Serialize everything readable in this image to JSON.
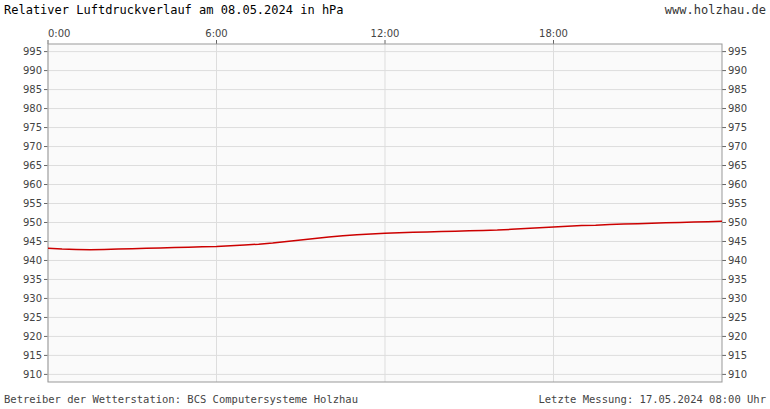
{
  "chart_data": {
    "type": "line",
    "title": "Relativer Luftdruckverlauf am 08.05.2024 in hPa",
    "annotations": [
      "www.holzhau.de",
      "Betreiber der Wetterstation: BCS Computersysteme Holzhau",
      "Letzte Messung: 17.05.2024 08:00 Uhr"
    ],
    "x": [
      0,
      6,
      12,
      18,
      24,
      30,
      36,
      42,
      48,
      54,
      60,
      66,
      72,
      78,
      84,
      90,
      96,
      102,
      108,
      114,
      120,
      126,
      132,
      138,
      144,
      150,
      156,
      162,
      168,
      174,
      180,
      186,
      192,
      198,
      204,
      210,
      216,
      222,
      228,
      234,
      240,
      246,
      252,
      258,
      264,
      270,
      276,
      282,
      288
    ],
    "values": [
      943.2,
      943.0,
      942.9,
      942.8,
      942.9,
      943.0,
      943.1,
      943.2,
      943.3,
      943.4,
      943.5,
      943.6,
      943.7,
      943.9,
      944.1,
      944.3,
      944.6,
      945.0,
      945.4,
      945.8,
      946.2,
      946.5,
      946.8,
      947.0,
      947.2,
      947.3,
      947.4,
      947.5,
      947.6,
      947.7,
      947.8,
      947.9,
      948.0,
      948.2,
      948.4,
      948.6,
      948.8,
      949.0,
      949.2,
      949.3,
      949.5,
      949.6,
      949.7,
      949.8,
      949.9,
      950.0,
      950.1,
      950.2,
      950.3
    ],
    "color": "#cc0000",
    "xlim": [
      0,
      288
    ],
    "xticks": [
      {
        "value": 0,
        "label": "0:00"
      },
      {
        "value": 72,
        "label": "6:00"
      },
      {
        "value": 144,
        "label": "12:00"
      },
      {
        "value": 216,
        "label": "18:00"
      }
    ],
    "ylim": [
      908,
      997
    ],
    "yticks": [
      910,
      915,
      920,
      925,
      930,
      935,
      940,
      945,
      950,
      955,
      960,
      965,
      970,
      975,
      980,
      985,
      990,
      995
    ],
    "y2lim": [
      908,
      997
    ],
    "y2ticks": [
      910,
      915,
      920,
      925,
      930,
      935,
      940,
      945,
      950,
      955,
      960,
      965,
      970,
      975,
      980,
      985,
      990,
      995
    ],
    "grid": true
  }
}
